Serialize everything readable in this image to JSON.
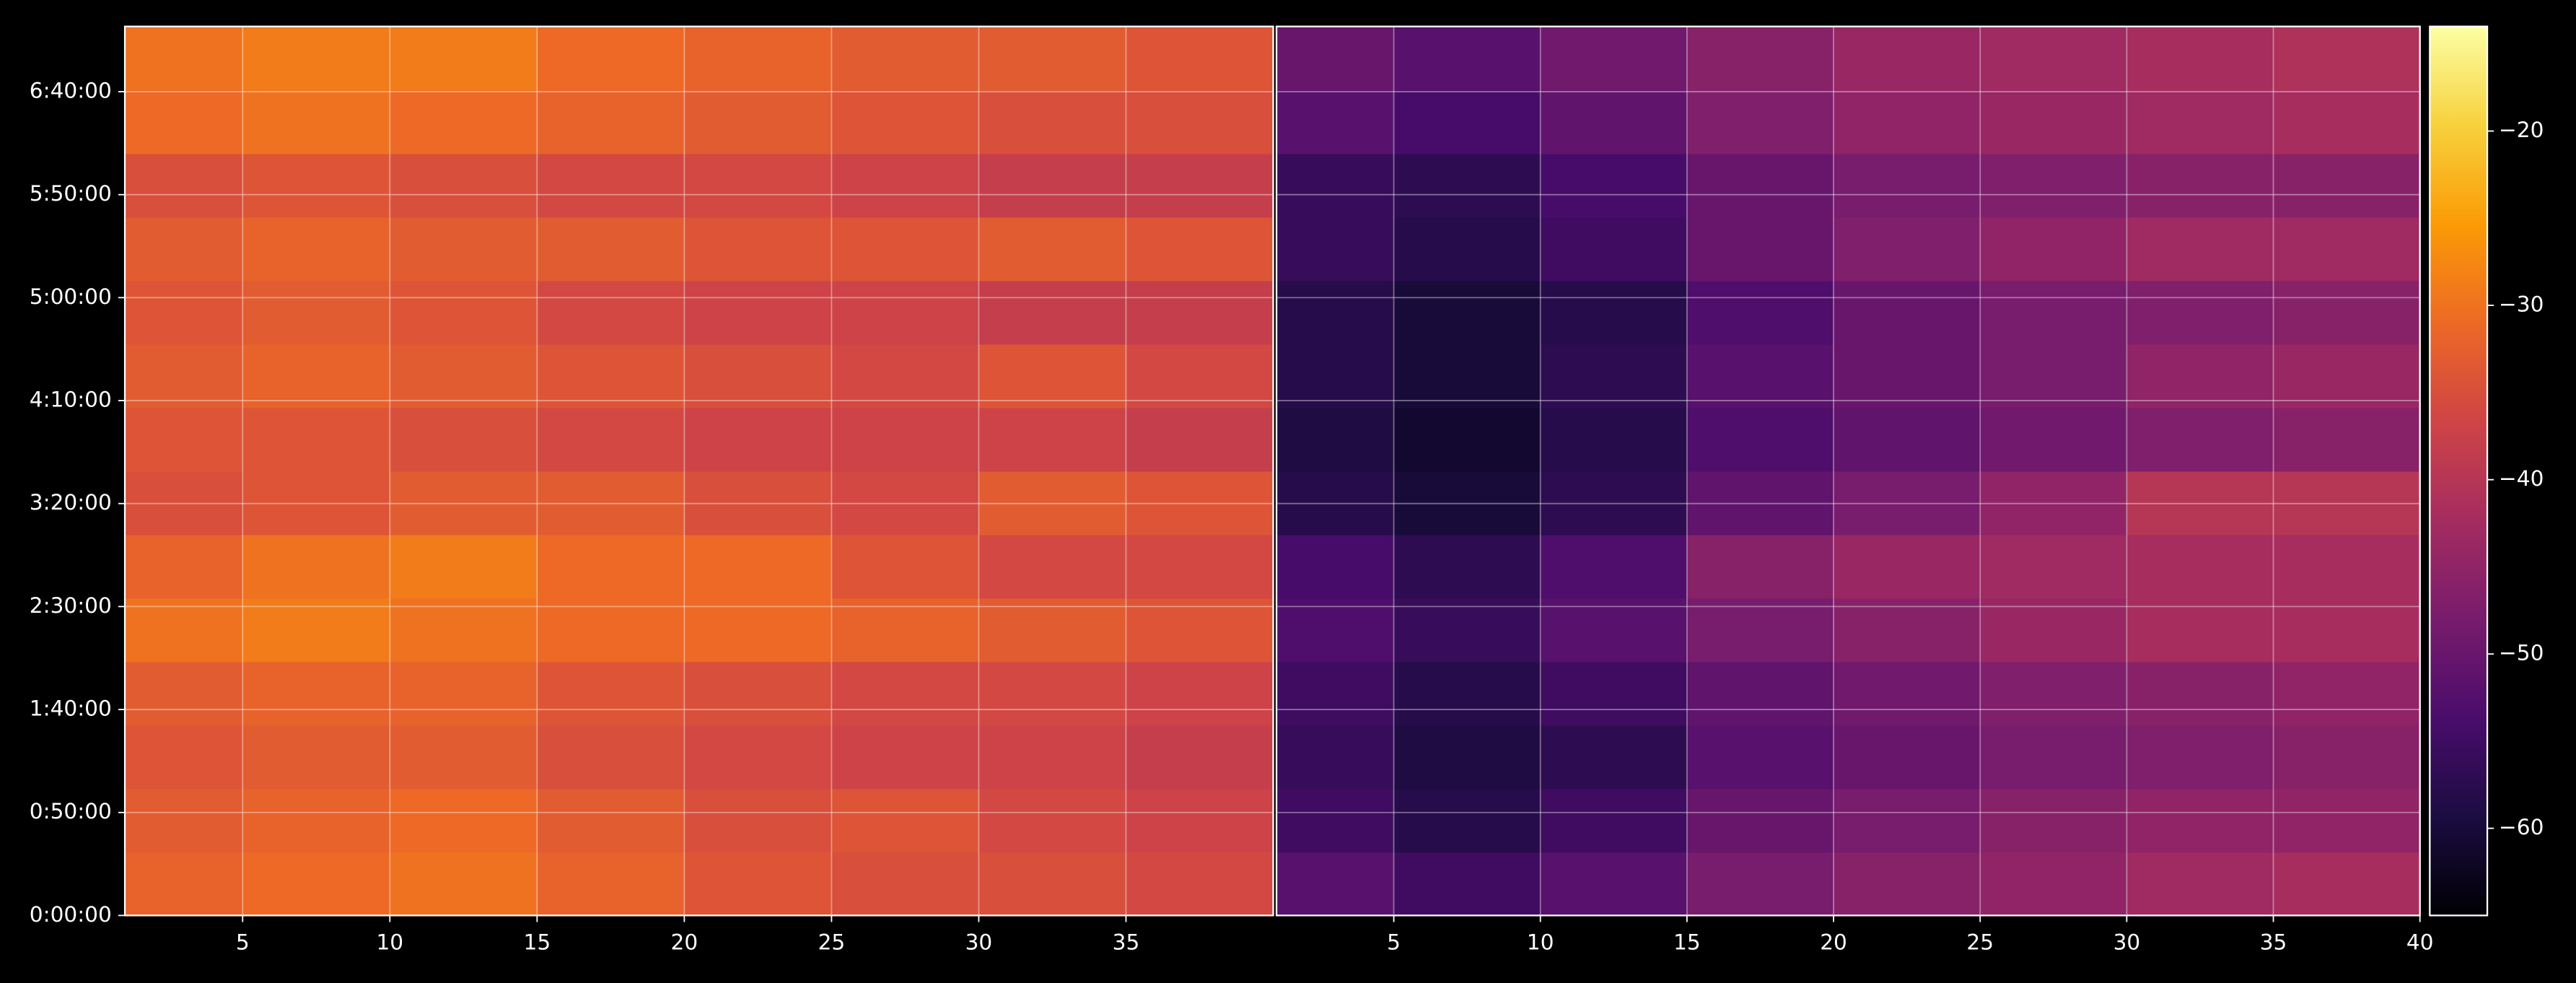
{
  "chart_data": [
    {
      "type": "heatmap",
      "xlim": [
        1,
        40
      ],
      "xticks": [
        5,
        10,
        15,
        20,
        25,
        30,
        35
      ],
      "ylim": [
        0,
        25900
      ],
      "yticks": [
        {
          "value": 0,
          "label": "0:00:00"
        },
        {
          "value": 3000,
          "label": "0:50:00"
        },
        {
          "value": 6000,
          "label": "1:40:00"
        },
        {
          "value": 9000,
          "label": "2:30:00"
        },
        {
          "value": 12000,
          "label": "3:20:00"
        },
        {
          "value": 15000,
          "label": "4:10:00"
        },
        {
          "value": 18000,
          "label": "5:00:00"
        },
        {
          "value": 21000,
          "label": "5:50:00"
        },
        {
          "value": 24000,
          "label": "6:40:00"
        }
      ],
      "grid": true,
      "xbins": [
        1,
        5,
        10,
        15,
        20,
        25,
        30,
        35,
        40
      ],
      "ybins": [
        0,
        1850,
        3700,
        5550,
        7400,
        9250,
        11100,
        12950,
        14800,
        16650,
        18500,
        20350,
        22200,
        24050,
        25900
      ],
      "values": [
        [
          -32,
          -31,
          -30,
          -32,
          -34,
          -35,
          -35,
          -36
        ],
        [
          -33,
          -32,
          -31,
          -33,
          -35,
          -34,
          -36,
          -37
        ],
        [
          -34,
          -33,
          -33,
          -35,
          -36,
          -37,
          -37,
          -38
        ],
        [
          -33,
          -32,
          -32,
          -34,
          -35,
          -36,
          -36,
          -37
        ],
        [
          -30,
          -29,
          -30,
          -31,
          -31,
          -32,
          -33,
          -34
        ],
        [
          -32,
          -30,
          -29,
          -31,
          -31,
          -34,
          -36,
          -36
        ],
        [
          -35,
          -34,
          -33,
          -33,
          -35,
          -36,
          -33,
          -34
        ],
        [
          -34,
          -34,
          -35,
          -36,
          -37,
          -37,
          -37,
          -38
        ],
        [
          -33,
          -32,
          -33,
          -34,
          -35,
          -36,
          -34,
          -36
        ],
        [
          -34,
          -33,
          -34,
          -36,
          -37,
          -37,
          -38,
          -38
        ],
        [
          -33,
          -32,
          -33,
          -33,
          -34,
          -34,
          -33,
          -34
        ],
        [
          -35,
          -34,
          -35,
          -36,
          -36,
          -37,
          -38,
          -38
        ],
        [
          -31,
          -30,
          -31,
          -32,
          -33,
          -34,
          -35,
          -35
        ],
        [
          -30,
          -29,
          -29,
          -31,
          -32,
          -33,
          -33,
          -34
        ]
      ]
    },
    {
      "type": "heatmap",
      "xlim": [
        1,
        40
      ],
      "xticks": [
        5,
        10,
        15,
        20,
        25,
        30,
        35,
        40
      ],
      "ylim": [
        0,
        25900
      ],
      "grid": true,
      "xbins": [
        1,
        5,
        10,
        15,
        20,
        25,
        30,
        35,
        40
      ],
      "ybins": [
        0,
        1850,
        3700,
        5550,
        7400,
        9250,
        11100,
        12950,
        14800,
        16650,
        18500,
        20350,
        22200,
        24050,
        25900
      ],
      "values": [
        [
          -52,
          -55,
          -52,
          -48,
          -46,
          -45,
          -43,
          -42
        ],
        [
          -55,
          -58,
          -55,
          -50,
          -48,
          -46,
          -45,
          -45
        ],
        [
          -56,
          -59,
          -57,
          -52,
          -50,
          -48,
          -47,
          -46
        ],
        [
          -55,
          -58,
          -55,
          -51,
          -49,
          -47,
          -46,
          -45
        ],
        [
          -53,
          -56,
          -52,
          -48,
          -46,
          -44,
          -42,
          -42
        ],
        [
          -54,
          -57,
          -53,
          -46,
          -44,
          -43,
          -42,
          -42
        ],
        [
          -58,
          -60,
          -57,
          -51,
          -48,
          -45,
          -40,
          -40
        ],
        [
          -59,
          -61,
          -58,
          -53,
          -51,
          -49,
          -47,
          -46
        ],
        [
          -58,
          -60,
          -57,
          -52,
          -50,
          -48,
          -45,
          -44
        ],
        [
          -58,
          -60,
          -58,
          -53,
          -50,
          -48,
          -47,
          -46
        ],
        [
          -56,
          -58,
          -55,
          -50,
          -47,
          -45,
          -43,
          -43
        ],
        [
          -56,
          -57,
          -54,
          -50,
          -48,
          -47,
          -46,
          -46
        ],
        [
          -52,
          -54,
          -51,
          -47,
          -45,
          -44,
          -43,
          -42
        ],
        [
          -50,
          -52,
          -49,
          -46,
          -44,
          -43,
          -42,
          -41
        ]
      ]
    }
  ],
  "colorbar": {
    "clim": [
      -65,
      -14
    ],
    "ticks": [
      {
        "value": -20,
        "label": "−20"
      },
      {
        "value": -30,
        "label": "−30"
      },
      {
        "value": -40,
        "label": "−40"
      },
      {
        "value": -50,
        "label": "−50"
      },
      {
        "value": -60,
        "label": "−60"
      }
    ],
    "colormap": [
      "#000004",
      "#1b0c41",
      "#4a0c6b",
      "#781c6d",
      "#a52c60",
      "#cf4446",
      "#ed6925",
      "#fb9b06",
      "#f7d13d",
      "#fcffa4"
    ]
  }
}
